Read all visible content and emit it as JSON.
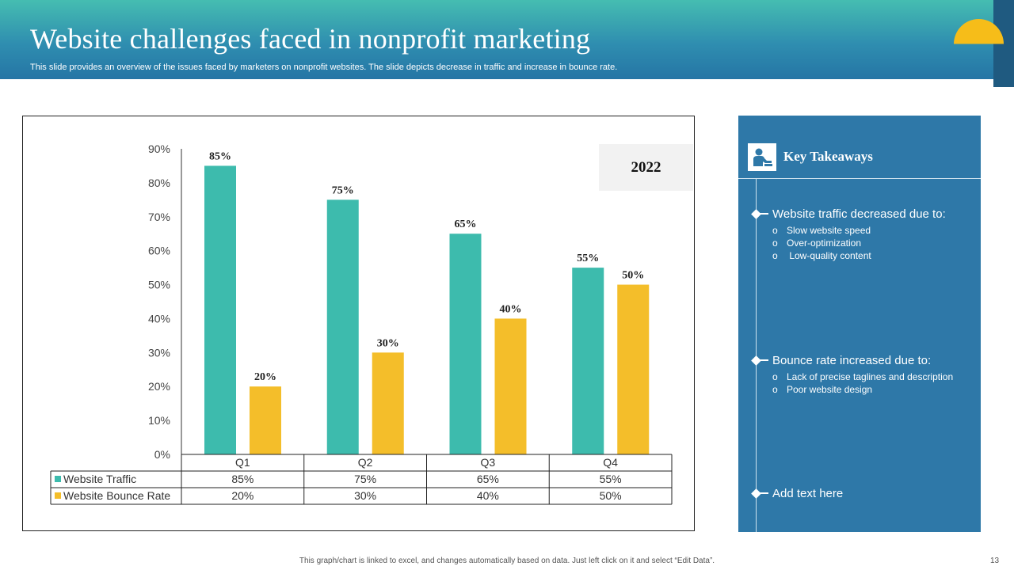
{
  "slide": {
    "title": "Website challenges faced in nonprofit marketing",
    "subtitle": "This slide provides an overview of the issues faced by marketers on nonprofit websites. The slide depicts decrease in traffic and increase in bounce rate.",
    "footer": "This graph/chart is linked to excel,  and changes automatically based on data. Just left click on it and select “Edit Data”.",
    "page_number": "13",
    "year_label": "2022",
    "colors": {
      "header_start": "#45bdb1",
      "header_end": "#2575a5",
      "panel": "#2e78a8",
      "sun": "#f6bd19"
    },
    "icons": [
      "sun-decoration-icon",
      "user-presenter-icon",
      "diamond-bullet-icon"
    ]
  },
  "takeaways": {
    "title": "Key Takeaways",
    "sections": [
      {
        "heading": "Website traffic decreased due to:",
        "items": [
          "Slow website speed",
          "Over-optimization",
          " Low-quality content"
        ]
      },
      {
        "heading": "Bounce rate increased due to:",
        "items": [
          "Lack of precise taglines and description",
          "Poor website design"
        ]
      },
      {
        "heading": "Add text here",
        "items": []
      }
    ]
  },
  "chart_data": {
    "type": "bar",
    "categories": [
      "Q1",
      "Q2",
      "Q3",
      "Q4"
    ],
    "series": [
      {
        "name": "Website Traffic",
        "values": [
          85,
          75,
          65,
          55
        ],
        "color": "#3dbbad",
        "labels": [
          "85%",
          "75%",
          "65%",
          "55%"
        ]
      },
      {
        "name": "Website Bounce Rate",
        "values": [
          20,
          30,
          40,
          50
        ],
        "color": "#f4be2a",
        "labels": [
          "20%",
          "30%",
          "40%",
          "50%"
        ]
      }
    ],
    "yticks": [
      "0%",
      "10%",
      "20%",
      "30%",
      "40%",
      "50%",
      "60%",
      "70%",
      "80%",
      "90%"
    ],
    "ylim": [
      0,
      90
    ],
    "grid": false,
    "legend": "data-table"
  }
}
